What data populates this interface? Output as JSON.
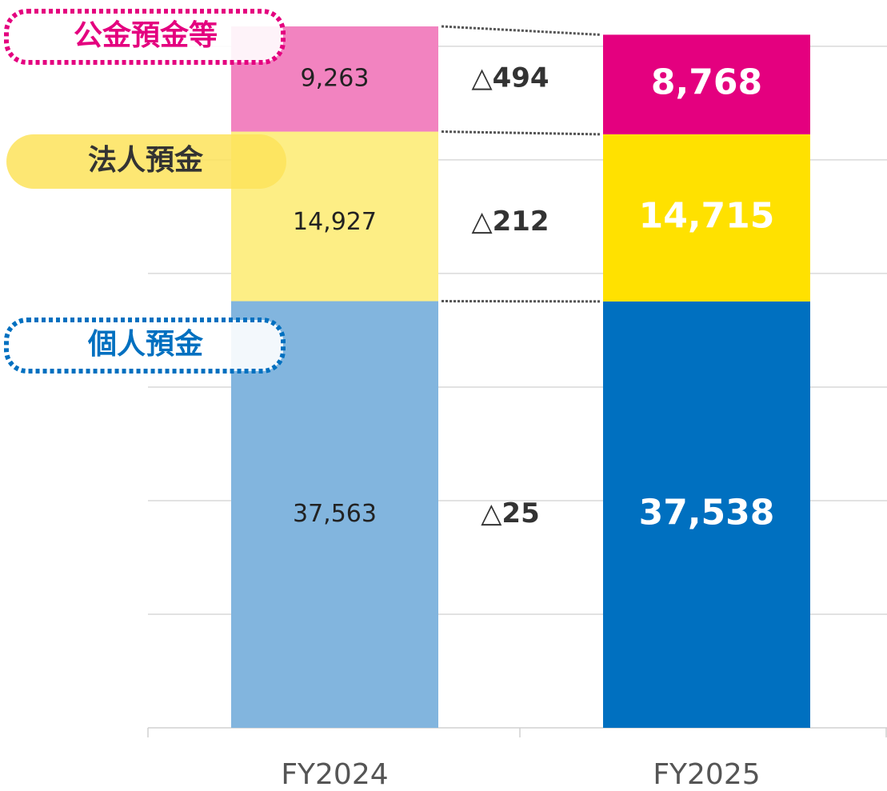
{
  "chart_data": {
    "type": "stacked_bar",
    "categories": [
      "FY2024",
      "FY2025"
    ],
    "series": [
      {
        "name": "個人預金",
        "colors": [
          "#82b5de",
          "#0070c0"
        ],
        "badge_color": "#0070c0",
        "values": [
          37563,
          37538
        ],
        "value_labels": [
          "37,563",
          "37,538"
        ]
      },
      {
        "name": "法人預金",
        "colors": [
          "#fdee85",
          "#ffe100"
        ],
        "badge_color": "#fde35a",
        "values": [
          14927,
          14715
        ],
        "value_labels": [
          "14,927",
          "14,715"
        ]
      },
      {
        "name": "公金預金等",
        "colors": [
          "#f283c0",
          "#e4007f"
        ],
        "badge_color": "#e4007f",
        "values": [
          9263,
          8768
        ],
        "value_labels": [
          "9,263",
          "8,768"
        ]
      }
    ],
    "differences": [
      "△25",
      "△212",
      "△494"
    ],
    "ylim": [
      0,
      62000
    ],
    "yticks": [
      0,
      10000,
      20000,
      30000,
      40000,
      50000,
      60000
    ],
    "grid": true
  }
}
